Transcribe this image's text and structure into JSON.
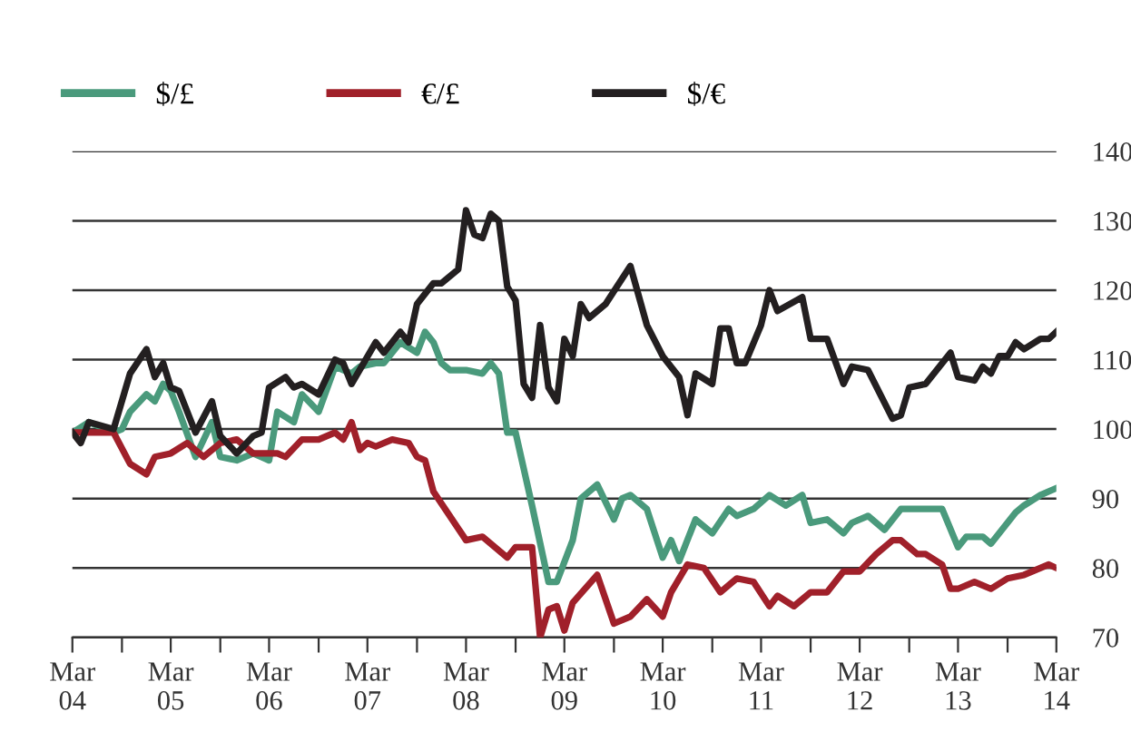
{
  "chart_data": {
    "type": "line",
    "series": [
      {
        "name": "$/£",
        "color": "#4a9a7c",
        "x": [
          "2004-03",
          "2004-05",
          "2004-08",
          "2004-09",
          "2004-10",
          "2004-12",
          "2005-01",
          "2005-02",
          "2005-03",
          "2005-04",
          "2005-06",
          "2005-08",
          "2005-09",
          "2005-11",
          "2006-01",
          "2006-03",
          "2006-04",
          "2006-06",
          "2006-07",
          "2006-09",
          "2006-11",
          "2007-01",
          "2007-02",
          "2007-04",
          "2007-05",
          "2007-07",
          "2007-09",
          "2007-10",
          "2007-11",
          "2007-12",
          "2008-01",
          "2008-03",
          "2008-05",
          "2008-06",
          "2008-07",
          "2008-08",
          "2008-09",
          "2008-11",
          "2009-01",
          "2009-02",
          "2009-04",
          "2009-05",
          "2009-07",
          "2009-09",
          "2009-10",
          "2009-11",
          "2010-01",
          "2010-03",
          "2010-04",
          "2010-05",
          "2010-07",
          "2010-09",
          "2010-11",
          "2010-12",
          "2011-02",
          "2011-04",
          "2011-06",
          "2011-08",
          "2011-09",
          "2011-11",
          "2012-01",
          "2012-02",
          "2012-04",
          "2012-06",
          "2012-08",
          "2012-12",
          "2013-01",
          "2013-03",
          "2013-04",
          "2013-06",
          "2013-07",
          "2013-10",
          "2013-11",
          "2014-01",
          "2014-03"
        ],
        "values": [
          99.5,
          101,
          99.5,
          100,
          102.5,
          105,
          104,
          106.5,
          105.5,
          102.5,
          96,
          101,
          96,
          95.5,
          96.5,
          95.5,
          102.5,
          101,
          105,
          102.5,
          109,
          108,
          109,
          109.5,
          109.5,
          112.5,
          111,
          114,
          112.5,
          109.5,
          108.5,
          108.5,
          108,
          109.5,
          108,
          99.5,
          99.5,
          89,
          78,
          78,
          84,
          90,
          92,
          87,
          90,
          90.5,
          88.5,
          81.5,
          84,
          81,
          87,
          85,
          88.5,
          87.5,
          88.5,
          90.5,
          89,
          90.5,
          86.5,
          87,
          85,
          86.5,
          87.5,
          85.5,
          88.5,
          88.5,
          88.5,
          83,
          84.5,
          84.5,
          83.5,
          88,
          89,
          90.5,
          91.5
        ]
      },
      {
        "name": "€/£",
        "color": "#a0202a",
        "x": [
          "2004-03",
          "2004-05",
          "2004-08",
          "2004-10",
          "2004-12",
          "2005-01",
          "2005-03",
          "2005-05",
          "2005-07",
          "2005-09",
          "2005-11",
          "2006-01",
          "2006-04",
          "2006-05",
          "2006-07",
          "2006-09",
          "2006-11",
          "2006-12",
          "2007-01",
          "2007-02",
          "2007-03",
          "2007-04",
          "2007-06",
          "2007-08",
          "2007-09",
          "2007-10",
          "2007-11",
          "2008-03",
          "2008-05",
          "2008-08",
          "2008-09",
          "2008-11",
          "2008-12",
          "2009-01",
          "2009-02",
          "2009-03",
          "2009-04",
          "2009-07",
          "2009-09",
          "2009-11",
          "2010-01",
          "2010-03",
          "2010-04",
          "2010-06",
          "2010-08",
          "2010-10",
          "2010-12",
          "2011-02",
          "2011-04",
          "2011-05",
          "2011-07",
          "2011-09",
          "2011-11",
          "2012-01",
          "2012-03",
          "2012-05",
          "2012-07",
          "2012-08",
          "2012-10",
          "2012-11",
          "2013-01",
          "2013-02",
          "2013-03",
          "2013-05",
          "2013-07",
          "2013-09",
          "2013-11",
          "2014-02",
          "2014-03"
        ],
        "values": [
          99.5,
          99.5,
          99.5,
          95,
          93.5,
          96,
          96.5,
          98,
          96,
          98,
          98.5,
          96.5,
          96.5,
          96,
          98.5,
          98.5,
          99.5,
          98.5,
          101,
          97,
          98,
          97.5,
          98.5,
          98,
          96,
          95.5,
          91,
          84,
          84.5,
          81.5,
          83,
          83,
          70,
          74,
          74.5,
          71,
          75,
          79,
          72,
          73,
          75.5,
          73,
          76.5,
          80.5,
          80,
          76.5,
          78.5,
          78,
          74.5,
          76,
          74.5,
          76.5,
          76.5,
          79.5,
          79.5,
          82,
          84,
          84,
          82,
          82,
          80.5,
          77,
          77,
          78,
          77,
          78.5,
          79,
          80.5,
          80
        ]
      },
      {
        "name": "$/€",
        "color": "#231f20",
        "x": [
          "2004-03",
          "2004-04",
          "2004-05",
          "2004-08",
          "2004-10",
          "2004-12",
          "2005-01",
          "2005-02",
          "2005-03",
          "2005-04",
          "2005-06",
          "2005-08",
          "2005-09",
          "2005-11",
          "2006-01",
          "2006-02",
          "2006-03",
          "2006-05",
          "2006-06",
          "2006-07",
          "2006-09",
          "2006-11",
          "2006-12",
          "2007-01",
          "2007-04",
          "2007-05",
          "2007-07",
          "2007-08",
          "2007-09",
          "2007-11",
          "2007-12",
          "2008-02",
          "2008-03",
          "2008-04",
          "2008-05",
          "2008-06",
          "2008-07",
          "2008-08",
          "2008-09",
          "2008-10",
          "2008-11",
          "2008-12",
          "2009-01",
          "2009-02",
          "2009-03",
          "2009-04",
          "2009-05",
          "2009-06",
          "2009-08",
          "2009-11",
          "2010-01",
          "2010-03",
          "2010-05",
          "2010-06",
          "2010-07",
          "2010-09",
          "2010-10",
          "2010-11",
          "2010-12",
          "2011-01",
          "2011-03",
          "2011-04",
          "2011-05",
          "2011-08",
          "2011-09",
          "2011-11",
          "2012-01",
          "2012-02",
          "2012-04",
          "2012-07",
          "2012-08",
          "2012-09",
          "2012-11",
          "2013-02",
          "2013-03",
          "2013-05",
          "2013-06",
          "2013-07",
          "2013-08",
          "2013-09",
          "2013-10",
          "2013-11",
          "2014-01",
          "2014-02",
          "2014-03"
        ],
        "values": [
          99.5,
          98,
          101,
          100,
          108,
          111.5,
          107.5,
          109.5,
          106,
          105.5,
          99.5,
          104,
          99,
          96.5,
          99,
          99.5,
          106,
          107.5,
          106,
          106.5,
          105,
          110,
          109.5,
          106.5,
          112.5,
          111,
          114,
          112.5,
          118,
          121,
          121,
          123,
          131.5,
          128,
          127.5,
          131,
          130,
          120.5,
          118.5,
          106.5,
          104.5,
          115,
          106,
          104,
          113,
          110.5,
          118,
          116,
          118,
          123.5,
          115,
          110.5,
          107.5,
          102,
          108,
          106.5,
          114.5,
          114.5,
          109.5,
          109.5,
          115,
          120,
          117,
          119,
          113,
          113,
          106.5,
          109,
          108.5,
          101.5,
          102,
          106,
          106.5,
          111,
          107.5,
          107,
          109,
          108,
          110.5,
          110.5,
          112.5,
          111.5,
          113,
          113,
          114
        ]
      }
    ],
    "xlim": [
      "2004-03",
      "2014-03"
    ],
    "xticks": [
      {
        "value": "2004-03",
        "label": "Mar\n04"
      },
      {
        "value": "2004-09",
        "label": null
      },
      {
        "value": "2005-03",
        "label": "Mar\n05"
      },
      {
        "value": "2005-09",
        "label": null
      },
      {
        "value": "2006-03",
        "label": "Mar\n06"
      },
      {
        "value": "2006-09",
        "label": null
      },
      {
        "value": "2007-03",
        "label": "Mar\n07"
      },
      {
        "value": "2007-09",
        "label": null
      },
      {
        "value": "2008-03",
        "label": "Mar\n08"
      },
      {
        "value": "2008-09",
        "label": null
      },
      {
        "value": "2009-03",
        "label": "Mar\n09"
      },
      {
        "value": "2009-09",
        "label": null
      },
      {
        "value": "2010-03",
        "label": "Mar\n10"
      },
      {
        "value": "2010-09",
        "label": null
      },
      {
        "value": "2011-03",
        "label": "Mar\n11"
      },
      {
        "value": "2011-09",
        "label": null
      },
      {
        "value": "2012-03",
        "label": "Mar\n12"
      },
      {
        "value": "2012-09",
        "label": null
      },
      {
        "value": "2013-03",
        "label": "Mar\n13"
      },
      {
        "value": "2013-09",
        "label": null
      },
      {
        "value": "2014-03",
        "label": "Mar\n14"
      }
    ],
    "ylim": [
      70,
      140
    ],
    "yticks": [
      70,
      80,
      90,
      100,
      110,
      120,
      130,
      140
    ],
    "grid": "y",
    "legend": "top left",
    "marker": "none",
    "line_style": "solid"
  }
}
